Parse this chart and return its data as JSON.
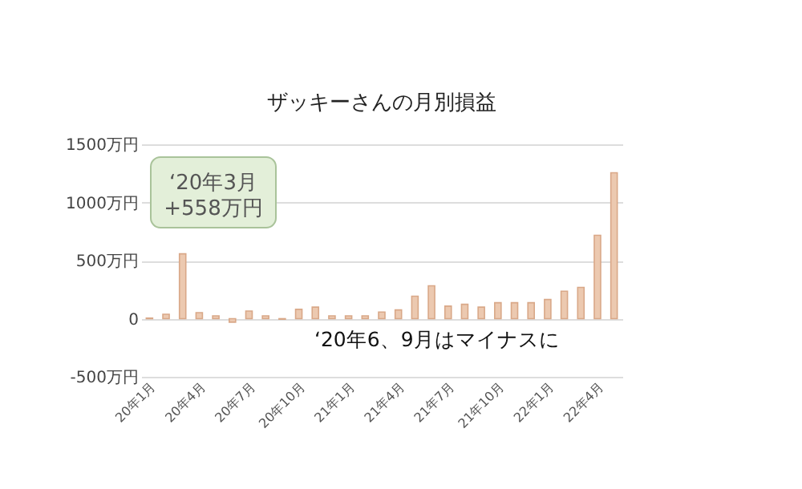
{
  "chart_data": {
    "type": "bar",
    "title": "ザッキーさんの月別損益",
    "categories": [
      "20年1月",
      null,
      null,
      "20年4月",
      null,
      null,
      "20年7月",
      null,
      null,
      "20年10月",
      null,
      null,
      "21年1月",
      null,
      null,
      "21年4月",
      null,
      null,
      "21年7月",
      null,
      null,
      "21年10月",
      null,
      null,
      "22年1月",
      null,
      null,
      "22年4月",
      null
    ],
    "values": [
      5,
      38,
      558,
      52,
      24,
      -30,
      66,
      24,
      -5,
      80,
      99,
      24,
      24,
      24,
      57,
      75,
      193,
      283,
      108,
      123,
      99,
      137,
      137,
      137,
      165,
      236,
      269,
      717,
      1255
    ],
    "color": "#ecc9b0",
    "ylim": [
      -500,
      1500
    ],
    "yticks": [
      {
        "value": -500,
        "label": "-500万円"
      },
      0,
      {
        "value": 500,
        "label": "500万円"
      },
      {
        "value": 1000,
        "label": "1000万円"
      },
      {
        "value": 1500,
        "label": "1500万円"
      }
    ],
    "grid": "y",
    "annotations": [
      "‘20年3月\n+558万円",
      "‘20年6、9月はマイナスに"
    ]
  }
}
